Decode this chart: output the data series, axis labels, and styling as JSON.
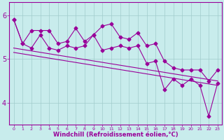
{
  "xlabel": "Windchill (Refroidissement éolien,°C)",
  "x_values": [
    0,
    1,
    2,
    3,
    4,
    5,
    6,
    7,
    8,
    9,
    10,
    11,
    12,
    13,
    14,
    15,
    16,
    17,
    18,
    19,
    20,
    21,
    22,
    23
  ],
  "y_main": [
    5.9,
    5.35,
    5.25,
    5.55,
    5.25,
    5.2,
    5.3,
    5.25,
    5.3,
    5.55,
    5.2,
    5.25,
    5.3,
    5.25,
    5.3,
    4.9,
    4.95,
    4.3,
    4.55,
    4.4,
    4.55,
    4.4,
    3.7,
    4.45
  ],
  "y_upper": [
    5.9,
    5.35,
    5.65,
    5.65,
    5.65,
    5.35,
    5.4,
    5.7,
    5.4,
    5.55,
    5.75,
    5.8,
    5.5,
    5.45,
    5.6,
    5.3,
    5.35,
    4.95,
    4.8,
    4.75,
    4.75,
    4.75,
    4.5,
    4.75
  ],
  "trend1_start": 5.25,
  "trend1_end": 4.5,
  "trend2_start": 5.15,
  "trend2_end": 4.4,
  "line_color": "#990099",
  "bg_color": "#c8ecec",
  "grid_color": "#a0cccc",
  "ylim": [
    3.5,
    6.3
  ],
  "yticks": [
    4,
    5,
    6
  ],
  "xlim": [
    -0.5,
    23.5
  ],
  "marker": "D",
  "markersize": 2.5,
  "linewidth": 0.8
}
